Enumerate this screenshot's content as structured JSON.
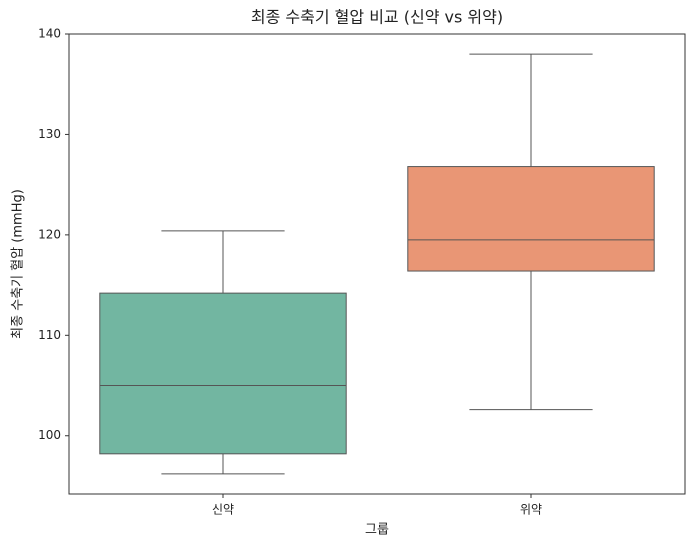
{
  "chart_data": {
    "type": "box",
    "title": "최종 수축기 혈압 비교 (신약 vs 위약)",
    "x_label": "그룹",
    "y_label": "최종 수축기 혈압 (mmHg)",
    "categories": [
      "신약",
      "위약"
    ],
    "colors": [
      "#72b6a1",
      "#e99675"
    ],
    "boxes": [
      {
        "whisker_low": 96.2,
        "q1": 98.2,
        "median": 105.0,
        "q3": 114.2,
        "whisker_high": 120.4
      },
      {
        "whisker_low": 102.6,
        "q1": 116.4,
        "median": 119.5,
        "q3": 126.8,
        "whisker_high": 138.0
      }
    ],
    "ylim": [
      94.2,
      140
    ],
    "yticks": [
      100,
      110,
      120,
      130,
      140
    ],
    "grid": false
  }
}
